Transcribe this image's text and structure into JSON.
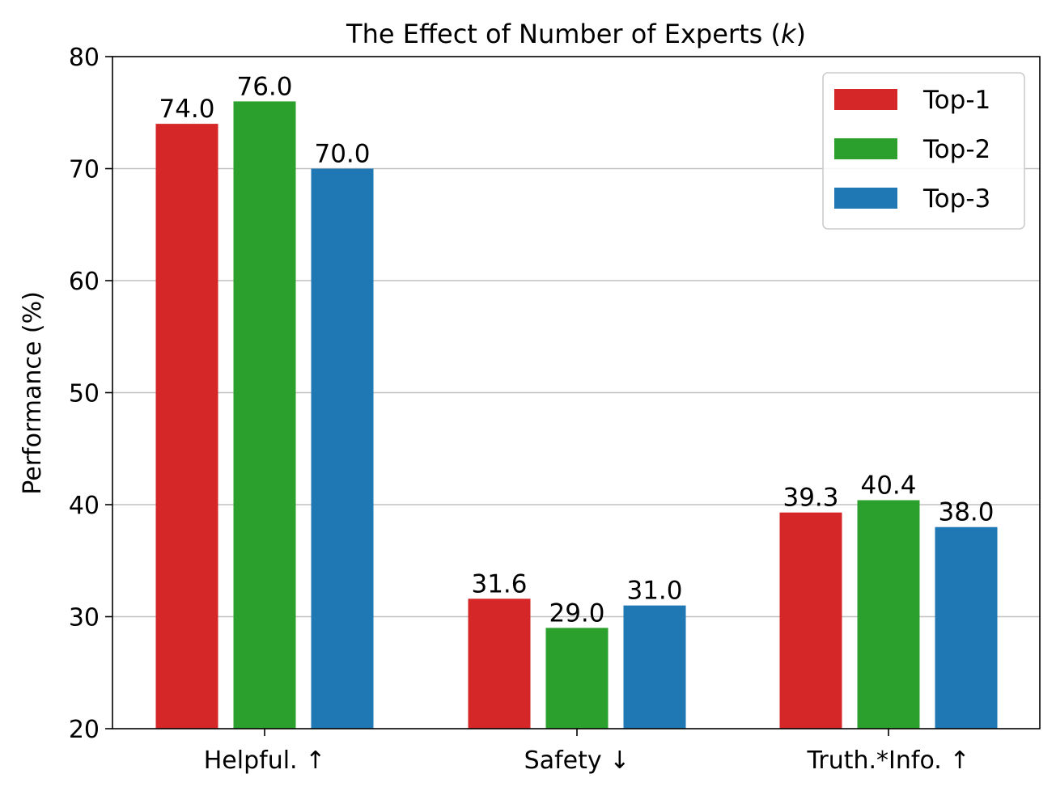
{
  "chart_data": {
    "type": "bar",
    "title_main": "The Effect of Number of Experts (",
    "title_var": "k",
    "title_end": ")",
    "ylabel": "Performance (%)",
    "xlabel": "",
    "ylim": [
      20,
      80
    ],
    "yticks": [
      "20",
      "30",
      "40",
      "50",
      "60",
      "70",
      "80"
    ],
    "grid": "horizontal",
    "legend_position": "top-right",
    "categories": [
      "Helpful. ↑",
      "Safety ↓",
      "Truth.*Info. ↑"
    ],
    "series": [
      {
        "name": "Top-1",
        "color": "#d62728",
        "values": [
          74.0,
          31.6,
          39.3
        ],
        "labels": [
          "74.0",
          "31.6",
          "39.3"
        ]
      },
      {
        "name": "Top-2",
        "color": "#2ca02c",
        "values": [
          76.0,
          29.0,
          40.4
        ],
        "labels": [
          "76.0",
          "29.0",
          "40.4"
        ]
      },
      {
        "name": "Top-3",
        "color": "#1f77b4",
        "values": [
          70.0,
          31.0,
          38.0
        ],
        "labels": [
          "70.0",
          "31.0",
          "38.0"
        ]
      }
    ]
  }
}
